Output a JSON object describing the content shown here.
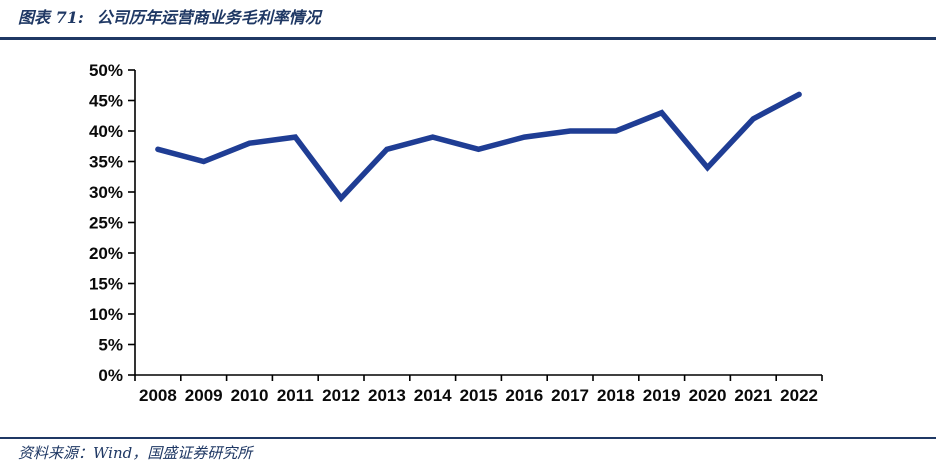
{
  "header": {
    "figure_label": "图表 71:",
    "title": "公司历年运营商业务毛利率情况",
    "accent_color": "#1F3864"
  },
  "chart_data": {
    "type": "line",
    "title": "公司历年运营商业务毛利率情况",
    "categories": [
      "2008",
      "2009",
      "2010",
      "2011",
      "2012",
      "2013",
      "2014",
      "2015",
      "2016",
      "2017",
      "2018",
      "2019",
      "2020",
      "2021",
      "2022"
    ],
    "values": [
      37,
      35,
      38,
      39,
      29,
      37,
      39,
      37,
      39,
      40,
      40,
      43,
      34,
      42,
      46
    ],
    "unit": "%",
    "xlabel": "",
    "ylabel": "",
    "ylim": [
      0,
      50
    ],
    "ytick_step": 5,
    "ytick_suffix": "%",
    "grid": false,
    "legend": "none",
    "line_color": "#1F3D94",
    "axis_color": "#000000"
  },
  "footer": {
    "source": "资料来源：Wind，国盛证券研究所"
  }
}
